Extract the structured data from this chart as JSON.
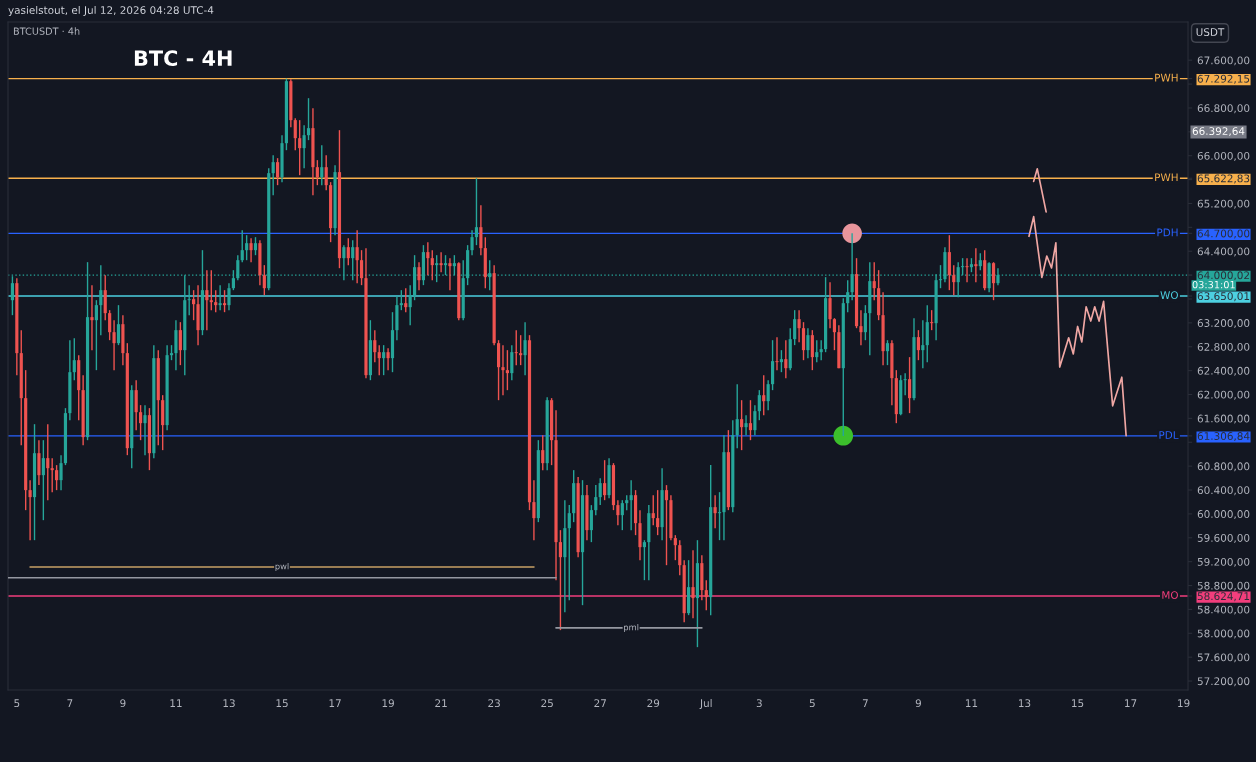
{
  "chart_data": {
    "type": "candlestick",
    "title": "BTC - 4H",
    "x": [
      "2026-06-04T20:00",
      "2026-06-05T00:00",
      "2026-06-05T04:00",
      "2026-06-05T08:00",
      "2026-06-05T12:00",
      "2026-06-05T16:00",
      "2026-06-05T20:00",
      "2026-06-06T00:00",
      "2026-06-06T04:00",
      "2026-06-06T08:00",
      "2026-06-06T12:00",
      "2026-06-06T16:00",
      "2026-06-06T20:00",
      "2026-06-07T00:00",
      "2026-06-07T04:00",
      "2026-06-07T08:00",
      "2026-06-07T12:00",
      "2026-06-07T16:00",
      "2026-06-07T20:00",
      "2026-06-08T00:00",
      "2026-06-08T04:00",
      "2026-06-08T08:00",
      "2026-06-08T12:00",
      "2026-06-08T16:00",
      "2026-06-08T20:00",
      "2026-06-09T00:00",
      "2026-06-09T04:00",
      "2026-06-09T08:00",
      "2026-06-09T12:00",
      "2026-06-09T16:00",
      "2026-06-09T20:00",
      "2026-06-10T00:00",
      "2026-06-10T04:00",
      "2026-06-10T08:00",
      "2026-06-10T12:00",
      "2026-06-10T16:00",
      "2026-06-10T20:00",
      "2026-06-11T00:00",
      "2026-06-11T04:00",
      "2026-06-11T08:00",
      "2026-06-11T12:00",
      "2026-06-11T16:00",
      "2026-06-11T20:00",
      "2026-06-12T00:00",
      "2026-06-12T04:00",
      "2026-06-12T08:00",
      "2026-06-12T12:00",
      "2026-06-12T16:00",
      "2026-06-12T20:00",
      "2026-06-13T00:00",
      "2026-06-13T04:00",
      "2026-06-13T08:00",
      "2026-06-13T12:00",
      "2026-06-13T16:00",
      "2026-06-13T20:00",
      "2026-06-14T00:00",
      "2026-06-14T04:00",
      "2026-06-14T08:00",
      "2026-06-14T12:00",
      "2026-06-14T16:00",
      "2026-06-14T20:00",
      "2026-06-15T00:00",
      "2026-06-15T04:00",
      "2026-06-15T08:00",
      "2026-06-15T12:00",
      "2026-06-15T16:00",
      "2026-06-15T20:00",
      "2026-06-16T00:00",
      "2026-06-16T04:00",
      "2026-06-16T08:00",
      "2026-06-16T12:00",
      "2026-06-16T16:00",
      "2026-06-16T20:00",
      "2026-06-17T00:00",
      "2026-06-17T04:00",
      "2026-06-17T08:00",
      "2026-06-17T12:00",
      "2026-06-17T16:00",
      "2026-06-17T20:00",
      "2026-06-18T00:00",
      "2026-06-18T04:00",
      "2026-06-18T08:00",
      "2026-06-18T12:00",
      "2026-06-18T16:00",
      "2026-06-18T20:00",
      "2026-06-19T00:00",
      "2026-06-19T04:00",
      "2026-06-19T08:00",
      "2026-06-19T12:00",
      "2026-06-19T16:00",
      "2026-06-19T20:00",
      "2026-06-20T00:00",
      "2026-06-20T04:00",
      "2026-06-20T08:00",
      "2026-06-20T12:00",
      "2026-06-20T16:00",
      "2026-06-20T20:00",
      "2026-06-21T00:00",
      "2026-06-21T04:00",
      "2026-06-21T08:00",
      "2026-06-21T12:00",
      "2026-06-21T16:00",
      "2026-06-21T20:00",
      "2026-06-22T00:00",
      "2026-06-22T04:00",
      "2026-06-22T08:00",
      "2026-06-22T12:00",
      "2026-06-22T16:00",
      "2026-06-22T20:00",
      "2026-06-23T00:00",
      "2026-06-23T04:00",
      "2026-06-23T08:00",
      "2026-06-23T12:00",
      "2026-06-23T16:00",
      "2026-06-23T20:00",
      "2026-06-24T00:00",
      "2026-06-24T04:00",
      "2026-06-24T08:00",
      "2026-06-24T12:00",
      "2026-06-24T16:00",
      "2026-06-24T20:00",
      "2026-06-25T00:00",
      "2026-06-25T04:00",
      "2026-06-25T08:00",
      "2026-06-25T12:00",
      "2026-06-25T16:00",
      "2026-06-25T20:00",
      "2026-06-26T00:00",
      "2026-06-26T04:00",
      "2026-06-26T08:00",
      "2026-06-26T12:00",
      "2026-06-26T16:00",
      "2026-06-26T20:00",
      "2026-06-27T00:00",
      "2026-06-27T04:00",
      "2026-06-27T08:00",
      "2026-06-27T12:00",
      "2026-06-27T16:00",
      "2026-06-27T20:00",
      "2026-06-28T00:00",
      "2026-06-28T04:00",
      "2026-06-28T08:00",
      "2026-06-28T12:00",
      "2026-06-28T16:00",
      "2026-06-28T20:00",
      "2026-06-29T00:00",
      "2026-06-29T04:00",
      "2026-06-29T08:00",
      "2026-06-29T12:00",
      "2026-06-29T16:00",
      "2026-06-29T20:00",
      "2026-06-30T00:00",
      "2026-06-30T04:00",
      "2026-06-30T08:00",
      "2026-06-30T12:00",
      "2026-06-30T16:00",
      "2026-06-30T20:00",
      "2026-07-01T00:00",
      "2026-07-01T04:00",
      "2026-07-01T08:00",
      "2026-07-01T12:00",
      "2026-07-01T16:00",
      "2026-07-01T20:00",
      "2026-07-02T00:00",
      "2026-07-02T04:00",
      "2026-07-02T08:00",
      "2026-07-02T12:00",
      "2026-07-02T16:00",
      "2026-07-02T20:00",
      "2026-07-03T00:00",
      "2026-07-03T04:00",
      "2026-07-03T08:00",
      "2026-07-03T12:00",
      "2026-07-03T16:00",
      "2026-07-03T20:00",
      "2026-07-04T00:00",
      "2026-07-04T04:00",
      "2026-07-04T08:00",
      "2026-07-04T12:00",
      "2026-07-04T16:00",
      "2026-07-04T20:00",
      "2026-07-05T00:00",
      "2026-07-05T04:00",
      "2026-07-05T08:00",
      "2026-07-05T12:00",
      "2026-07-05T16:00",
      "2026-07-05T20:00",
      "2026-07-06T00:00",
      "2026-07-06T04:00",
      "2026-07-06T08:00",
      "2026-07-06T12:00",
      "2026-07-06T16:00",
      "2026-07-06T20:00",
      "2026-07-07T00:00",
      "2026-07-07T04:00",
      "2026-07-07T08:00",
      "2026-07-07T12:00",
      "2026-07-07T16:00",
      "2026-07-07T20:00",
      "2026-07-08T00:00",
      "2026-07-08T04:00",
      "2026-07-08T08:00",
      "2026-07-08T12:00",
      "2026-07-08T16:00",
      "2026-07-08T20:00",
      "2026-07-09T00:00",
      "2026-07-09T04:00",
      "2026-07-09T08:00",
      "2026-07-09T12:00",
      "2026-07-09T16:00",
      "2026-07-09T20:00",
      "2026-07-10T00:00",
      "2026-07-10T04:00",
      "2026-07-10T08:00",
      "2026-07-10T12:00",
      "2026-07-10T16:00",
      "2026-07-10T20:00",
      "2026-07-11T00:00",
      "2026-07-11T04:00",
      "2026-07-11T08:00",
      "2026-07-11T12:00",
      "2026-07-11T16:00",
      "2026-07-11T20:00",
      "2026-07-12T00:00"
    ],
    "ohlc": [
      [
        63580,
        63982,
        63329,
        63865
      ],
      [
        63865,
        63949,
        62324,
        62693
      ],
      [
        62693,
        63078,
        61151,
        61939
      ],
      [
        61939,
        62408,
        60063,
        60398
      ],
      [
        60398,
        60565,
        59560,
        60281
      ],
      [
        60281,
        61503,
        59560,
        61017
      ],
      [
        61017,
        61235,
        60482,
        60649
      ],
      [
        60649,
        61235,
        59895,
        60934
      ],
      [
        60934,
        61503,
        60230,
        60766
      ],
      [
        60766,
        60934,
        60364,
        60733
      ],
      [
        60733,
        60817,
        60398,
        60565
      ],
      [
        60565,
        60984,
        60398,
        60850
      ],
      [
        60850,
        61772,
        60817,
        61688
      ],
      [
        61688,
        62910,
        61570,
        62374
      ],
      [
        62374,
        62944,
        62240,
        62575
      ],
      [
        62575,
        62659,
        61570,
        62073
      ],
      [
        62073,
        62324,
        61151,
        61286
      ],
      [
        61286,
        64217,
        61235,
        63296
      ],
      [
        63296,
        63832,
        62743,
        63245
      ],
      [
        63245,
        63580,
        62408,
        63497
      ],
      [
        63497,
        64167,
        62994,
        63748
      ],
      [
        63748,
        63999,
        63245,
        63363
      ],
      [
        63363,
        63413,
        62910,
        63044
      ],
      [
        63044,
        63245,
        62408,
        62860
      ],
      [
        62860,
        63497,
        62827,
        63178
      ],
      [
        63178,
        63329,
        62492,
        62693
      ],
      [
        62693,
        62860,
        60984,
        61101
      ],
      [
        61101,
        62157,
        60766,
        62073
      ],
      [
        62073,
        62240,
        61403,
        61704
      ],
      [
        61704,
        61822,
        61235,
        61520
      ],
      [
        61520,
        61822,
        60984,
        61654
      ],
      [
        61654,
        61772,
        60733,
        61017
      ],
      [
        61017,
        62827,
        60934,
        62609
      ],
      [
        62609,
        62743,
        61151,
        61905
      ],
      [
        61905,
        61989,
        61068,
        61487
      ],
      [
        61487,
        62827,
        61403,
        62659
      ],
      [
        62659,
        62827,
        62575,
        62693
      ],
      [
        62693,
        63245,
        62408,
        63078
      ],
      [
        63078,
        63212,
        62492,
        62743
      ],
      [
        62743,
        63999,
        62324,
        63580
      ],
      [
        63580,
        63832,
        63329,
        63597
      ],
      [
        63597,
        63748,
        63245,
        63513
      ],
      [
        63513,
        63832,
        62827,
        63078
      ],
      [
        63078,
        64418,
        62994,
        63748
      ],
      [
        63748,
        64083,
        63078,
        63580
      ],
      [
        63580,
        64083,
        63413,
        63547
      ],
      [
        63547,
        63748,
        63379,
        63497
      ],
      [
        63497,
        63832,
        63413,
        63530
      ],
      [
        63530,
        63748,
        63379,
        63497
      ],
      [
        63497,
        63865,
        63413,
        63781
      ],
      [
        63781,
        64083,
        63748,
        63949
      ],
      [
        63949,
        64334,
        63915,
        64250
      ],
      [
        64250,
        64753,
        64217,
        64418
      ],
      [
        64418,
        64669,
        64250,
        64535
      ],
      [
        64535,
        64619,
        64217,
        64418
      ],
      [
        64418,
        64636,
        64334,
        64535
      ],
      [
        64535,
        64586,
        63832,
        63999
      ],
      [
        63999,
        64167,
        63664,
        63781
      ],
      [
        63781,
        65792,
        63748,
        65708
      ],
      [
        65708,
        66009,
        65339,
        65892
      ],
      [
        65892,
        65959,
        65507,
        65641
      ],
      [
        65641,
        66344,
        65557,
        66210
      ],
      [
        66210,
        67292.15,
        66093,
        67249
      ],
      [
        67249,
        67280,
        66478,
        66596
      ],
      [
        66596,
        66629,
        66093,
        66294
      ],
      [
        66294,
        66596,
        65674,
        66127
      ],
      [
        66127,
        66512,
        65792,
        66344
      ],
      [
        66344,
        66964,
        66261,
        66462
      ],
      [
        66462,
        66797,
        65339,
        65808
      ],
      [
        65808,
        65926,
        65507,
        65641
      ],
      [
        65641,
        66177,
        65507,
        65808
      ],
      [
        65808,
        66009,
        65423,
        65507
      ],
      [
        65507,
        65557,
        64552,
        64787
      ],
      [
        64787,
        65842,
        64669,
        65725
      ],
      [
        65725,
        66428,
        64116,
        64284
      ],
      [
        64284,
        64502,
        63915,
        64468
      ],
      [
        64468,
        64619,
        64167,
        64284
      ],
      [
        64284,
        64586,
        63915,
        64468
      ],
      [
        64468,
        64753,
        63865,
        64250
      ],
      [
        64250,
        64418,
        63832,
        63949
      ],
      [
        63949,
        64452,
        62274,
        62324
      ],
      [
        62324,
        63245,
        62240,
        62910
      ],
      [
        62910,
        63078,
        62542,
        62709
      ],
      [
        62709,
        62827,
        62324,
        62609
      ],
      [
        62609,
        62827,
        62324,
        62709
      ],
      [
        62709,
        62776,
        62408,
        62609
      ],
      [
        62609,
        63379,
        62374,
        63078
      ],
      [
        63078,
        63647,
        62910,
        63497
      ],
      [
        63497,
        63748,
        63413,
        63530
      ],
      [
        63530,
        63781,
        63379,
        63463
      ],
      [
        63463,
        63832,
        63162,
        63664
      ],
      [
        63664,
        64334,
        63580,
        64133
      ],
      [
        64133,
        64217,
        63748,
        63915
      ],
      [
        63915,
        64502,
        63832,
        64385
      ],
      [
        64385,
        64552,
        63999,
        64284
      ],
      [
        64284,
        64418,
        63915,
        64167
      ],
      [
        64167,
        64334,
        63882,
        64200
      ],
      [
        64200,
        64385,
        64049,
        64167
      ],
      [
        64167,
        64334,
        63999,
        64200
      ],
      [
        64200,
        64284,
        63748,
        64150
      ],
      [
        64150,
        64334,
        63999,
        64200
      ],
      [
        64200,
        64217,
        63245,
        63279
      ],
      [
        63279,
        64250,
        63245,
        63949
      ],
      [
        63949,
        64502,
        63832,
        64418
      ],
      [
        64418,
        64753,
        64334,
        64636
      ],
      [
        64636,
        65622.83,
        64502,
        64803
      ],
      [
        64803,
        65172,
        64334,
        64452
      ],
      [
        64452,
        64636,
        63781,
        63966
      ],
      [
        63966,
        64250,
        63748,
        64033
      ],
      [
        64033,
        64167,
        62827,
        62860
      ],
      [
        62860,
        62910,
        61905,
        62458
      ],
      [
        62458,
        62827,
        61989,
        62408
      ],
      [
        62408,
        62743,
        62073,
        62358
      ],
      [
        62358,
        62827,
        62240,
        62709
      ],
      [
        62709,
        63078,
        62492,
        62693
      ],
      [
        62693,
        62994,
        62492,
        62659
      ],
      [
        62659,
        63212,
        62324,
        62910
      ],
      [
        62910,
        62994,
        60063,
        60197
      ],
      [
        60197,
        60565,
        59560,
        59929
      ],
      [
        59929,
        61235,
        59862,
        61068
      ],
      [
        61068,
        61319,
        60733,
        60850
      ],
      [
        60850,
        61956,
        60733,
        61905
      ],
      [
        61905,
        61939,
        60817,
        61235
      ],
      [
        61235,
        61738,
        58890,
        59527
      ],
      [
        59527,
        59728,
        58053,
        59275
      ],
      [
        59275,
        60230,
        58354,
        59761
      ],
      [
        59761,
        60147,
        58555,
        60012
      ],
      [
        60012,
        60733,
        59862,
        60515
      ],
      [
        60515,
        60616,
        59275,
        59359
      ],
      [
        59359,
        60565,
        58471,
        60314
      ],
      [
        60314,
        60482,
        59560,
        59728
      ],
      [
        59728,
        60147,
        59527,
        60063
      ],
      [
        60063,
        60482,
        59979,
        60281
      ],
      [
        60281,
        60599,
        60147,
        60515
      ],
      [
        60515,
        60900,
        60230,
        60314
      ],
      [
        60314,
        60934,
        60264,
        60817
      ],
      [
        60817,
        60850,
        60063,
        60147
      ],
      [
        60147,
        60230,
        59811,
        59979
      ],
      [
        59979,
        60230,
        59728,
        60180
      ],
      [
        60180,
        60314,
        60063,
        60230
      ],
      [
        60230,
        60565,
        59728,
        60314
      ],
      [
        60314,
        60398,
        59644,
        59845
      ],
      [
        59845,
        60063,
        59225,
        59443
      ],
      [
        59443,
        59560,
        58890,
        59527
      ],
      [
        59527,
        60147,
        58890,
        60012
      ],
      [
        60012,
        60314,
        59811,
        59929
      ],
      [
        59929,
        60398,
        59644,
        59778
      ],
      [
        59778,
        60766,
        59560,
        60398
      ],
      [
        60398,
        60482,
        59141,
        60230
      ],
      [
        60230,
        60314,
        59560,
        59594
      ],
      [
        59594,
        59644,
        59225,
        59476
      ],
      [
        59476,
        59560,
        58974,
        59141
      ],
      [
        59141,
        59225,
        58187,
        58337
      ],
      [
        58337,
        59225,
        58304,
        58773
      ],
      [
        58773,
        59393,
        58254,
        58589
      ],
      [
        58589,
        59560,
        57768,
        59175
      ],
      [
        59175,
        59309,
        58555,
        58723
      ],
      [
        58723,
        58890,
        58388,
        58606
      ],
      [
        58606,
        60817,
        58304,
        60113
      ],
      [
        60113,
        60314,
        59761,
        60012
      ],
      [
        60012,
        60364,
        59560,
        60029
      ],
      [
        60029,
        61319,
        59560,
        61034
      ],
      [
        61034,
        61403,
        60063,
        60113
      ],
      [
        60113,
        61570,
        60029,
        61319
      ],
      [
        61319,
        62173,
        61101,
        61587
      ],
      [
        61587,
        61905,
        61068,
        61453
      ],
      [
        61453,
        61654,
        61319,
        61520
      ],
      [
        61520,
        61905,
        61235,
        61403
      ],
      [
        61403,
        61822,
        61319,
        61721
      ],
      [
        61721,
        62073,
        61570,
        61989
      ],
      [
        61989,
        62324,
        61654,
        61889
      ],
      [
        61889,
        62240,
        61738,
        62173
      ],
      [
        62173,
        62910,
        62073,
        62559
      ],
      [
        62559,
        62961,
        62408,
        62542
      ],
      [
        62542,
        62743,
        62374,
        62592
      ],
      [
        62592,
        62910,
        62274,
        62441
      ],
      [
        62441,
        63111,
        62408,
        62927
      ],
      [
        62927,
        63413,
        62827,
        63262
      ],
      [
        63262,
        63413,
        62877,
        63111
      ],
      [
        63111,
        63212,
        62575,
        62743
      ],
      [
        62743,
        63111,
        62609,
        62994
      ],
      [
        62994,
        63078,
        62408,
        62626
      ],
      [
        62626,
        62910,
        62542,
        62709
      ],
      [
        62709,
        62910,
        62575,
        62760
      ],
      [
        62760,
        63966,
        62709,
        63614
      ],
      [
        63614,
        63882,
        63111,
        63262
      ],
      [
        63262,
        63279,
        62743,
        63044
      ],
      [
        63044,
        63162,
        62441,
        62441
      ],
      [
        62441,
        63614,
        61306.84,
        63530
      ],
      [
        63530,
        63915,
        63379,
        63714
      ],
      [
        63714,
        64700,
        63580,
        64016
      ],
      [
        64016,
        64284,
        63111,
        63145
      ],
      [
        63145,
        63413,
        62827,
        63044
      ],
      [
        63044,
        63497,
        62910,
        63363
      ],
      [
        63363,
        64217,
        62659,
        63899
      ],
      [
        63899,
        64217,
        63580,
        63781
      ],
      [
        63781,
        64083,
        63245,
        63329
      ],
      [
        63329,
        63714,
        62492,
        62726
      ],
      [
        62726,
        62910,
        62492,
        62860
      ],
      [
        62860,
        62910,
        61822,
        62274
      ],
      [
        62274,
        62408,
        61520,
        61671
      ],
      [
        61671,
        62324,
        61654,
        62240
      ],
      [
        62240,
        62358,
        61989,
        62257
      ],
      [
        62257,
        62626,
        61688,
        61939
      ],
      [
        61939,
        63279,
        61905,
        62961
      ],
      [
        62961,
        63078,
        62575,
        62743
      ],
      [
        62743,
        63245,
        62441,
        62827
      ],
      [
        62827,
        63497,
        62542,
        63212
      ],
      [
        63212,
        63413,
        63078,
        63195
      ],
      [
        63195,
        64016,
        62910,
        63915
      ],
      [
        63915,
        64167,
        63781,
        63932
      ],
      [
        63932,
        64468,
        63882,
        64385
      ],
      [
        64385,
        64669,
        63748,
        63999
      ],
      [
        63999,
        64167,
        63664,
        63882
      ],
      [
        63882,
        64217,
        63631,
        64133
      ],
      [
        64133,
        64284,
        63999,
        64150
      ],
      [
        64150,
        64284,
        63882,
        64133
      ],
      [
        64133,
        64284,
        64049,
        64183
      ],
      [
        64183,
        64452,
        63882,
        64150
      ],
      [
        64150,
        64368,
        64083,
        64250
      ],
      [
        64250,
        64418,
        63748,
        63781
      ],
      [
        63781,
        64217,
        63714,
        64200
      ],
      [
        64200,
        64217,
        63580,
        63865
      ],
      [
        63865,
        64116,
        63832,
        64000.02
      ]
    ],
    "colors": [
      "#26a69a",
      "#ef5350",
      "#ef5350",
      "#ef5350",
      "#ef5350",
      "#26a69a",
      "#ef5350",
      "#26a69a",
      "#ef5350",
      "#ef5350",
      "#ef5350",
      "#26a69a",
      "#26a69a",
      "#26a69a",
      "#26a69a",
      "#ef5350",
      "#ef5350",
      "#26a69a",
      "#ef5350",
      "#26a69a",
      "#26a69a",
      "#ef5350",
      "#ef5350",
      "#ef5350",
      "#26a69a",
      "#ef5350",
      "#ef5350",
      "#26a69a",
      "#ef5350",
      "#ef5350",
      "#26a69a",
      "#ef5350",
      "#26a69a",
      "#ef5350",
      "#ef5350",
      "#26a69a",
      "#26a69a",
      "#26a69a",
      "#ef5350",
      "#26a69a",
      "#26a69a",
      "#ef5350",
      "#ef5350",
      "#26a69a",
      "#ef5350",
      "#ef5350",
      "#ef5350",
      "#26a69a",
      "#ef5350",
      "#26a69a",
      "#26a69a",
      "#26a69a",
      "#26a69a",
      "#26a69a",
      "#ef5350",
      "#26a69a",
      "#ef5350",
      "#ef5350",
      "#26a69a",
      "#26a69a",
      "#ef5350",
      "#26a69a",
      "#26a69a",
      "#ef5350",
      "#ef5350",
      "#ef5350",
      "#26a69a",
      "#26a69a",
      "#ef5350",
      "#ef5350",
      "#26a69a",
      "#ef5350",
      "#ef5350",
      "#26a69a",
      "#ef5350",
      "#26a69a",
      "#ef5350",
      "#26a69a",
      "#ef5350",
      "#ef5350",
      "#ef5350",
      "#26a69a",
      "#ef5350",
      "#ef5350",
      "#26a69a",
      "#ef5350",
      "#26a69a",
      "#26a69a",
      "#26a69a",
      "#ef5350",
      "#26a69a",
      "#26a69a",
      "#ef5350",
      "#26a69a",
      "#ef5350",
      "#ef5350",
      "#26a69a",
      "#ef5350",
      "#26a69a",
      "#ef5350",
      "#26a69a",
      "#ef5350",
      "#26a69a",
      "#26a69a",
      "#26a69a",
      "#26a69a",
      "#ef5350",
      "#ef5350",
      "#26a69a",
      "#ef5350",
      "#ef5350",
      "#ef5350",
      "#ef5350",
      "#26a69a",
      "#ef5350",
      "#ef5350",
      "#26a69a",
      "#ef5350",
      "#ef5350",
      "#26a69a",
      "#ef5350",
      "#26a69a",
      "#ef5350",
      "#ef5350",
      "#ef5350",
      "#26a69a",
      "#26a69a",
      "#26a69a",
      "#ef5350",
      "#26a69a",
      "#ef5350",
      "#26a69a",
      "#26a69a",
      "#26a69a",
      "#ef5350",
      "#26a69a",
      "#ef5350",
      "#ef5350",
      "#26a69a",
      "#26a69a",
      "#26a69a",
      "#ef5350",
      "#ef5350",
      "#26a69a",
      "#26a69a",
      "#ef5350",
      "#ef5350",
      "#26a69a",
      "#ef5350",
      "#ef5350",
      "#ef5350",
      "#ef5350",
      "#ef5350",
      "#26a69a",
      "#ef5350",
      "#26a69a",
      "#ef5350",
      "#ef5350",
      "#26a69a",
      "#ef5350",
      "#26a69a",
      "#26a69a",
      "#ef5350",
      "#26a69a",
      "#26a69a",
      "#ef5350",
      "#26a69a",
      "#ef5350",
      "#26a69a",
      "#26a69a",
      "#ef5350",
      "#26a69a",
      "#26a69a",
      "#ef5350",
      "#26a69a",
      "#ef5350",
      "#26a69a",
      "#26a69a",
      "#ef5350",
      "#ef5350",
      "#26a69a",
      "#ef5350",
      "#26a69a",
      "#26a69a",
      "#26a69a",
      "#ef5350",
      "#ef5350",
      "#ef5350",
      "#26a69a",
      "#26a69a",
      "#26a69a",
      "#ef5350",
      "#ef5350",
      "#26a69a",
      "#26a69a",
      "#ef5350",
      "#ef5350",
      "#ef5350",
      "#26a69a",
      "#ef5350",
      "#ef5350",
      "#26a69a",
      "#26a69a",
      "#ef5350",
      "#26a69a",
      "#ef5350",
      "#26a69a",
      "#26a69a",
      "#ef5350",
      "#26a69a",
      "#26a69a",
      "#26a69a",
      "#ef5350",
      "#ef5350",
      "#26a69a",
      "#26a69a",
      "#ef5350",
      "#26a69a",
      "#ef5350",
      "#26a69a",
      "#ef5350",
      "#26a69a",
      "#ef5350",
      "#26a69a"
    ],
    "series": [
      {
        "type": "line",
        "color": "#f0a7a4",
        "x": [
          "2026-07-13T08:18",
          "2026-07-13T11:36",
          "2026-07-13T19:36"
        ],
        "values": [
          65570,
          65780,
          65060
        ]
      },
      {
        "type": "line",
        "color": "#f0a7a4",
        "x": [
          "2026-07-13T04:06",
          "2026-07-13T08:18",
          "2026-07-13T15:42",
          "2026-07-13T20:12",
          "2026-07-14T00:30",
          "2026-07-14T04:24",
          "2026-07-14T07:54",
          "2026-07-14T16:00",
          "2026-07-14T20:12",
          "2026-07-15T00:06",
          "2026-07-15T03:54",
          "2026-07-15T07:48",
          "2026-07-15T12:00",
          "2026-07-15T15:36",
          "2026-07-15T19:30",
          "2026-07-15T23:36",
          "2026-07-16T07:48",
          "2026-07-16T16:06",
          "2026-07-16T20:00"
        ],
        "values": [
          64650,
          64980,
          63960,
          64320,
          64120,
          64540,
          62460,
          62950,
          62680,
          63140,
          62880,
          63470,
          63230,
          63470,
          63230,
          63560,
          61810,
          62290,
          61310
        ]
      },
      {
        "type": "line",
        "color": "#c8a165",
        "x": [
          "2026-06-05T12:00",
          "2026-06-24T12:00"
        ],
        "values": [
          59110,
          59110
        ]
      },
      {
        "type": "line",
        "color": "#9598a1",
        "x": [
          "2026-06-04T16:00",
          "2026-06-25T08:00"
        ],
        "values": [
          58930,
          58930
        ]
      },
      {
        "type": "line",
        "color": "#9598a1",
        "x": [
          "2026-06-25T08:00",
          "2026-06-30T20:00"
        ],
        "values": [
          58090,
          58090
        ]
      },
      {
        "type": "scatter",
        "marker": "circle",
        "x": [
          "2026-07-06T12:00",
          "2026-07-06T04:00"
        ],
        "values": [
          64700,
          61310
        ],
        "colors": [
          "#e8959c",
          "#3cbf2c"
        ]
      }
    ],
    "ref_lines": [
      {
        "axis": "y",
        "value": 67292.15,
        "label": "PWH",
        "color": "#f7b04c"
      },
      {
        "axis": "y",
        "value": 65622.83,
        "label": "PWH",
        "color": "#f7b04c"
      },
      {
        "axis": "y",
        "value": 64700.0,
        "label": "PDH",
        "color": "#2962ff"
      },
      {
        "axis": "y",
        "value": 64000.02,
        "color": "#26a69a",
        "line_style": "dotted"
      },
      {
        "axis": "y",
        "value": 63650.01,
        "label": "WO",
        "color": "#4dd0e1"
      },
      {
        "axis": "y",
        "value": 61306.84,
        "label": "PDL",
        "color": "#2962ff"
      },
      {
        "axis": "y",
        "value": 58624.71,
        "label": "MO",
        "color": "#f23e7c"
      }
    ],
    "annotations": [
      "yasielstout, el Jul 12, 2026 04:28 UTC-4",
      "BTCUSDT · 4h",
      "USDT",
      "66.392,64",
      "03:31:01",
      {
        "text": "pwl",
        "x": "2026-06-15T00:00",
        "y": 59110
      },
      {
        "text": "pml",
        "x": "2026-06-28T04:00",
        "y": 58090
      }
    ],
    "xlim": [
      "2026-06-04T16:00",
      "2026-07-19T04:00"
    ],
    "ylim": [
      57050,
      68240
    ],
    "xticks": [
      {
        "value": "2026-06-05",
        "label": "5"
      },
      {
        "value": "2026-06-07",
        "label": "7"
      },
      {
        "value": "2026-06-09",
        "label": "9"
      },
      {
        "value": "2026-06-11",
        "label": "11"
      },
      {
        "value": "2026-06-13",
        "label": "13"
      },
      {
        "value": "2026-06-15",
        "label": "15"
      },
      {
        "value": "2026-06-17",
        "label": "17"
      },
      {
        "value": "2026-06-19",
        "label": "19"
      },
      {
        "value": "2026-06-21",
        "label": "21"
      },
      {
        "value": "2026-06-23",
        "label": "23"
      },
      {
        "value": "2026-06-25",
        "label": "25"
      },
      {
        "value": "2026-06-27",
        "label": "27"
      },
      {
        "value": "2026-06-29",
        "label": "29"
      },
      {
        "value": "2026-07-01",
        "label": "Jul"
      },
      {
        "value": "2026-07-03",
        "label": "3"
      },
      {
        "value": "2026-07-05",
        "label": "5"
      },
      {
        "value": "2026-07-07",
        "label": "7"
      },
      {
        "value": "2026-07-09",
        "label": "9"
      },
      {
        "value": "2026-07-11",
        "label": "11"
      },
      {
        "value": "2026-07-13",
        "label": "13"
      },
      {
        "value": "2026-07-15",
        "label": "15"
      },
      {
        "value": "2026-07-17",
        "label": "17"
      },
      {
        "value": "2026-07-19",
        "label": "19"
      }
    ],
    "yticks": [
      {
        "value": 57200,
        "label": "57.200,00"
      },
      {
        "value": 57600,
        "label": "57.600,00"
      },
      {
        "value": 58000,
        "label": "58.000,00"
      },
      {
        "value": 58400,
        "label": "58.400,00"
      },
      {
        "value": 58800,
        "label": "58.800,00"
      },
      {
        "value": 59200,
        "label": "59.200,00"
      },
      {
        "value": 59600,
        "label": "59.600,00"
      },
      {
        "value": 60000,
        "label": "60.000,00"
      },
      {
        "value": 60400,
        "label": "60.400,00"
      },
      {
        "value": 60800,
        "label": "60.800,00"
      },
      {
        "value": 61200,
        "label": null
      },
      {
        "value": 61600,
        "label": "61.600,00"
      },
      {
        "value": 62000,
        "label": "62.000,00"
      },
      {
        "value": 62400,
        "label": "62.400,00"
      },
      {
        "value": 62800,
        "label": "62.800,00"
      },
      {
        "value": 63200,
        "label": "63.200,00"
      },
      {
        "value": 63600,
        "label": null
      },
      {
        "value": 64000,
        "label": null
      },
      {
        "value": 64400,
        "label": "64.400,00"
      },
      {
        "value": 64800,
        "label": null
      },
      {
        "value": 65200,
        "label": "65.200,00"
      },
      {
        "value": 65600,
        "label": null
      },
      {
        "value": 66000,
        "label": "66.000,00"
      },
      {
        "value": 66400,
        "label": null
      },
      {
        "value": 66800,
        "label": "66.800,00"
      },
      {
        "value": 67200,
        "label": null
      },
      {
        "value": 67600,
        "label": "67.600,00"
      },
      {
        "value": 67292.15,
        "label": "67.292,15"
      },
      {
        "value": 65622.83,
        "label": "65.622,83"
      },
      {
        "value": 64700.0,
        "label": "64.700,00"
      },
      {
        "value": 64000.02,
        "label": "64.000,02"
      },
      {
        "value": 63650.01,
        "label": "63.650,01"
      },
      {
        "value": 61306.84,
        "label": "61.306,84"
      },
      {
        "value": 58624.71,
        "label": "58.624,71"
      }
    ]
  }
}
